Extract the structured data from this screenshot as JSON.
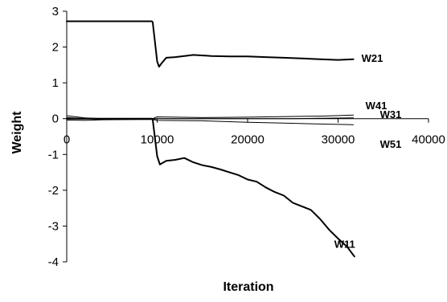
{
  "chart_data": {
    "type": "line",
    "title": "",
    "xlabel": "Iteration",
    "ylabel": "Weight",
    "xlim": [
      0,
      40000
    ],
    "ylim": [
      -4,
      3
    ],
    "x_ticks": [
      0,
      10000,
      20000,
      30000,
      40000
    ],
    "y_ticks": [
      3,
      2,
      1,
      0,
      -1,
      -2,
      -3,
      -4
    ],
    "x_tick_labels": [
      "0",
      "10000",
      "20000",
      "30000",
      "40000"
    ],
    "y_tick_labels": [
      "3",
      "2",
      "1",
      "0",
      "-1",
      "-2",
      "-3",
      "-4"
    ],
    "grid": false,
    "legend": "none",
    "series": [
      {
        "name": "W21",
        "x": [
          0,
          9400,
          9500,
          10000,
          10200,
          10500,
          11000,
          12000,
          13000,
          14000,
          16000,
          18000,
          20000,
          22000,
          24000,
          26000,
          28000,
          30000,
          31700
        ],
        "y": [
          2.72,
          2.72,
          2.7,
          1.6,
          1.45,
          1.55,
          1.7,
          1.72,
          1.75,
          1.78,
          1.75,
          1.74,
          1.74,
          1.72,
          1.7,
          1.68,
          1.66,
          1.64,
          1.66
        ]
      },
      {
        "name": "W41",
        "x": [
          0,
          2000,
          4000,
          9500,
          10000,
          15000,
          20000,
          25000,
          28000,
          31700
        ],
        "y": [
          0.08,
          0.02,
          0.0,
          0.0,
          0.05,
          0.03,
          0.04,
          0.06,
          0.07,
          0.1
        ]
      },
      {
        "name": "W31",
        "x": [
          0,
          2000,
          4000,
          9500,
          10000,
          15000,
          20000,
          25000,
          28000,
          31700
        ],
        "y": [
          0.03,
          0.0,
          -0.02,
          -0.02,
          0.0,
          0.0,
          0.0,
          0.0,
          0.01,
          0.02
        ]
      },
      {
        "name": "W51",
        "x": [
          0,
          2000,
          4000,
          9500,
          10000,
          15000,
          20000,
          25000,
          28000,
          31700
        ],
        "y": [
          -0.04,
          -0.05,
          -0.03,
          -0.02,
          -0.05,
          -0.06,
          -0.1,
          -0.13,
          -0.15,
          -0.17
        ]
      },
      {
        "name": "W11",
        "x": [
          0,
          9400,
          9500,
          10000,
          10300,
          11000,
          12000,
          13000,
          14000,
          15000,
          16000,
          17000,
          18000,
          19000,
          20000,
          21000,
          22000,
          23000,
          24000,
          25000,
          26000,
          27000,
          28000,
          29000,
          30000,
          31000,
          31800
        ],
        "y": [
          0.0,
          0.0,
          -0.02,
          -1.05,
          -1.28,
          -1.18,
          -1.15,
          -1.1,
          -1.22,
          -1.3,
          -1.35,
          -1.42,
          -1.5,
          -1.58,
          -1.7,
          -1.76,
          -1.92,
          -2.05,
          -2.15,
          -2.35,
          -2.45,
          -2.55,
          -2.8,
          -3.1,
          -3.35,
          -3.58,
          -3.85
        ]
      }
    ]
  }
}
